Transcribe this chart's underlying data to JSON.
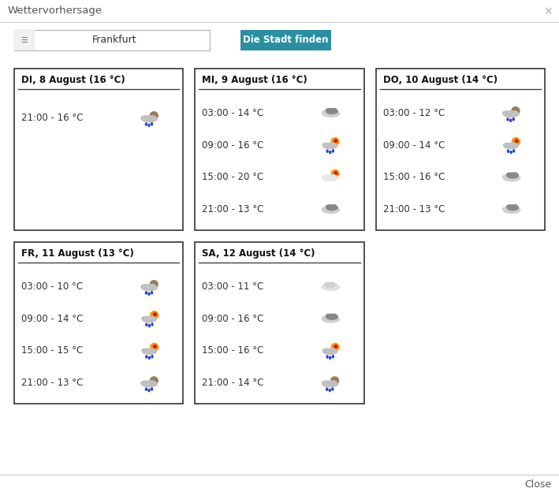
{
  "title": "Wettervorhersage",
  "city": "Frankfurt",
  "button_text": "Die Stadt finden",
  "button_color": "#2B8FA3",
  "close_text": "Close",
  "bg_color": "#ffffff",
  "days": [
    {
      "label": "DI, 8 August (16 °C)",
      "entries": [
        {
          "time": "21:00",
          "temp": "16 °C",
          "icon": "rain_night"
        }
      ]
    },
    {
      "label": "MI, 9 August (16 °C)",
      "entries": [
        {
          "time": "03:00",
          "temp": "14 °C",
          "icon": "cloudy_dark"
        },
        {
          "time": "09:00",
          "temp": "16 °C",
          "icon": "rain_sun"
        },
        {
          "time": "15:00",
          "temp": "20 °C",
          "icon": "partly_sun"
        },
        {
          "time": "21:00",
          "temp": "13 °C",
          "icon": "cloudy_dark"
        }
      ]
    },
    {
      "label": "DO, 10 August (14 °C)",
      "entries": [
        {
          "time": "03:00",
          "temp": "12 °C",
          "icon": "rain_night"
        },
        {
          "time": "09:00",
          "temp": "14 °C",
          "icon": "rain_sun"
        },
        {
          "time": "15:00",
          "temp": "16 °C",
          "icon": "cloudy_dark"
        },
        {
          "time": "21:00",
          "temp": "13 °C",
          "icon": "cloudy_dark"
        }
      ]
    },
    {
      "label": "FR, 11 August (13 °C)",
      "entries": [
        {
          "time": "03:00",
          "temp": "10 °C",
          "icon": "rain_night"
        },
        {
          "time": "09:00",
          "temp": "14 °C",
          "icon": "rain_sun"
        },
        {
          "time": "15:00",
          "temp": "15 °C",
          "icon": "rain_sun"
        },
        {
          "time": "21:00",
          "temp": "13 °C",
          "icon": "rain_night"
        }
      ]
    },
    {
      "label": "SA, 12 August (14 °C)",
      "entries": [
        {
          "time": "03:00",
          "temp": "11 °C",
          "icon": "cloud_white"
        },
        {
          "time": "09:00",
          "temp": "16 °C",
          "icon": "cloudy_dark"
        },
        {
          "time": "15:00",
          "temp": "16 °C",
          "icon": "rain_sun"
        },
        {
          "time": "21:00",
          "temp": "14 °C",
          "icon": "rain_night"
        }
      ]
    }
  ],
  "grid": [
    {
      "row": 0,
      "col": 0,
      "day_idx": 0
    },
    {
      "row": 0,
      "col": 1,
      "day_idx": 1
    },
    {
      "row": 0,
      "col": 2,
      "day_idx": 2
    },
    {
      "row": 1,
      "col": 0,
      "day_idx": 3
    },
    {
      "row": 1,
      "col": 1,
      "day_idx": 4
    }
  ],
  "figw": 7.09,
  "figh": 6.24,
  "dpi": 100
}
